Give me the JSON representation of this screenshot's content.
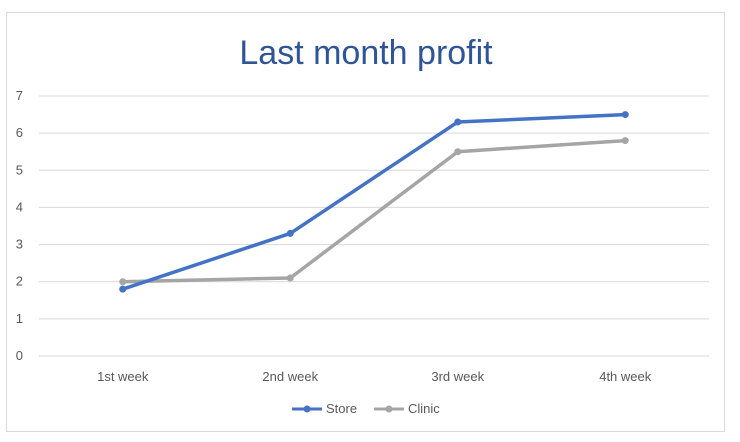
{
  "chart_data": {
    "type": "line",
    "title": "Last month profit",
    "xlabel": "",
    "ylabel": "",
    "categories": [
      "1st week",
      "2nd week",
      "3rd week",
      "4th week"
    ],
    "ylim": [
      0,
      7
    ],
    "y_ticks": [
      0,
      1,
      2,
      3,
      4,
      5,
      6,
      7
    ],
    "grid": true,
    "legend_position": "bottom",
    "series": [
      {
        "name": "Store",
        "values": [
          1.8,
          3.3,
          6.3,
          6.5
        ],
        "color": "#4472c4"
      },
      {
        "name": "Clinic",
        "values": [
          2.0,
          2.1,
          5.5,
          5.8
        ],
        "color": "#a5a5a5"
      }
    ]
  }
}
